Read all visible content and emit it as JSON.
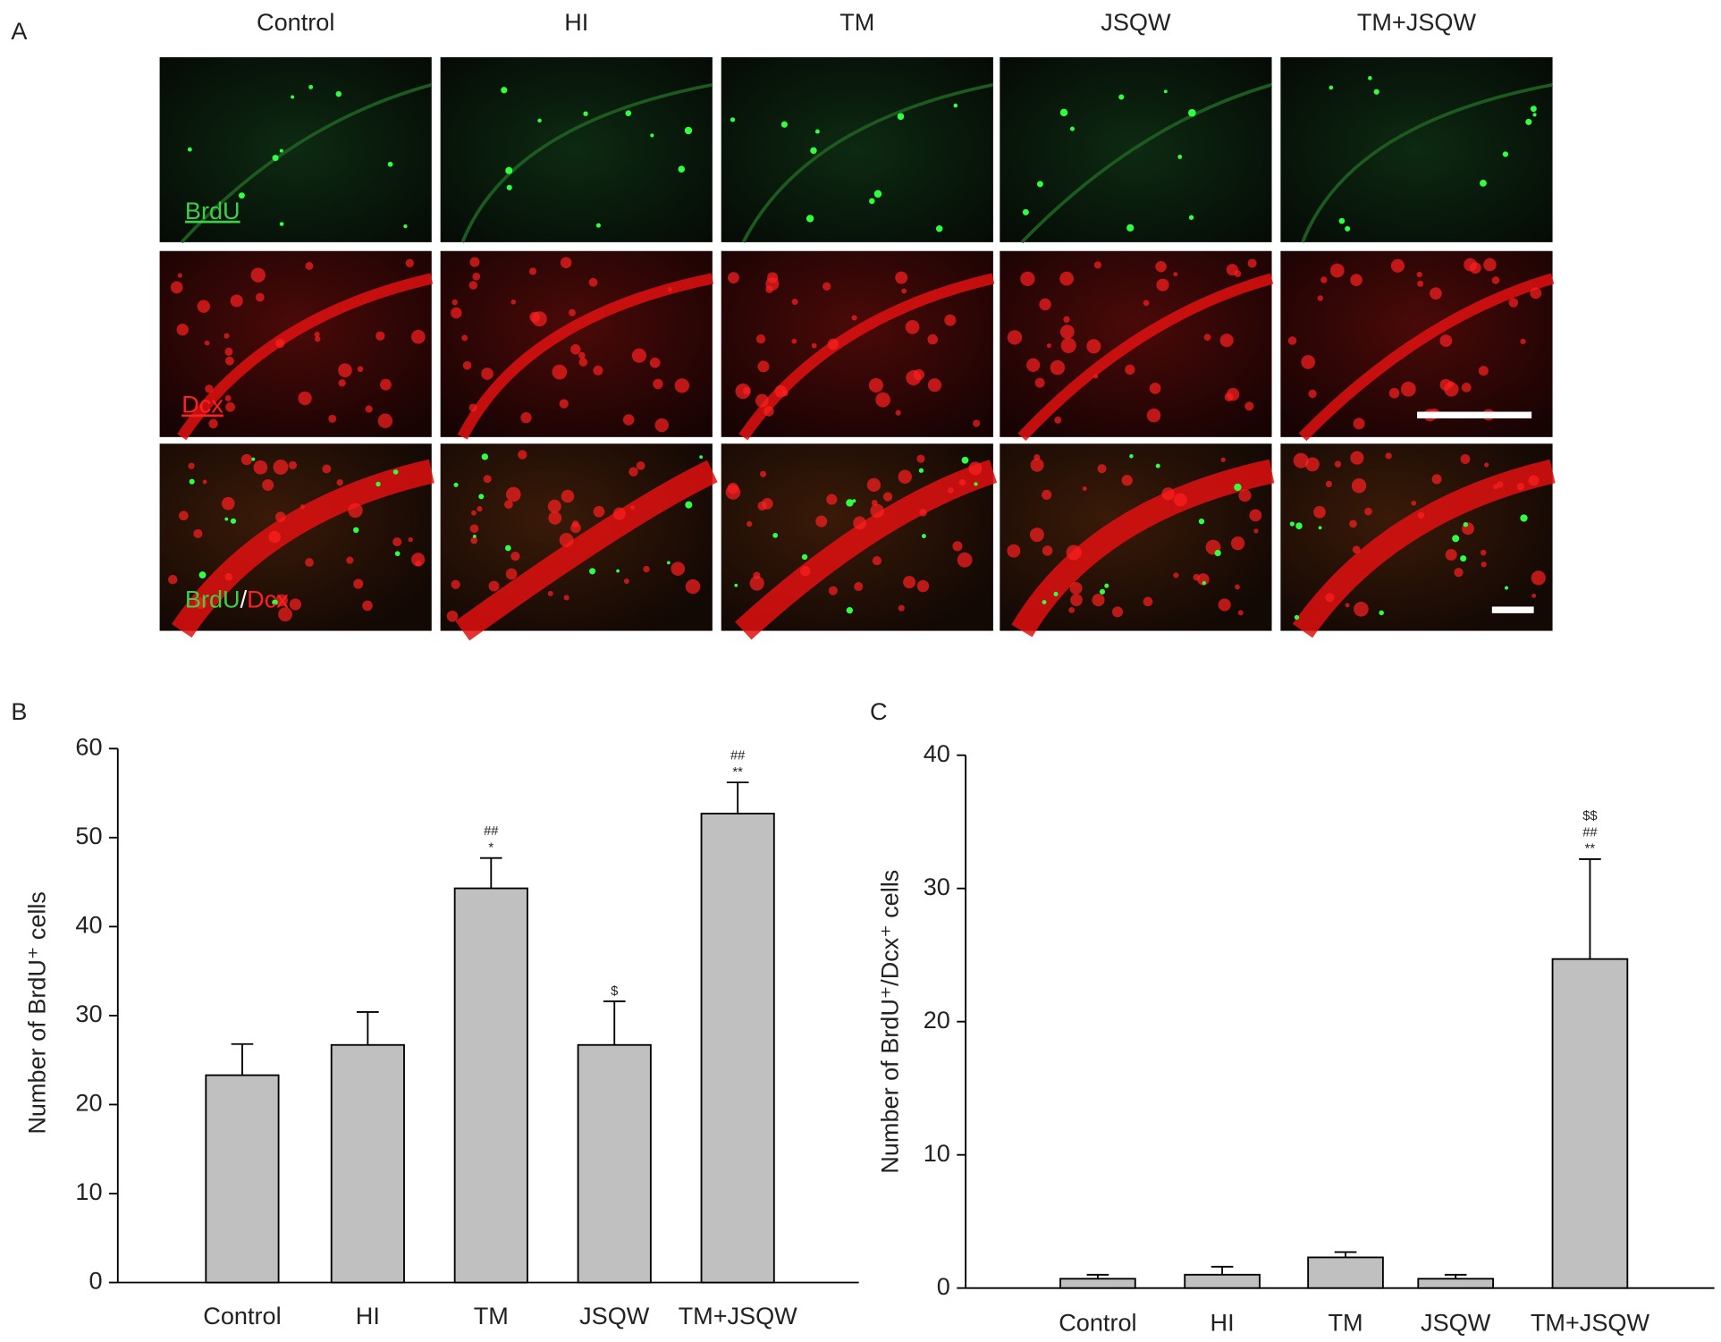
{
  "panel_a": {
    "label": "A",
    "columns": [
      "Control",
      "HI",
      "TM",
      "JSQW",
      "TM+JSQW"
    ],
    "row_labels": [
      "BrdU",
      "Dcx"
    ],
    "merged_label": [
      "BrdU",
      "/",
      "Dcx"
    ]
  },
  "chart_data": [
    {
      "type": "bar",
      "panel_label": "B",
      "y_label": "Number of BrdU⁺ cells",
      "categories": [
        "Control",
        "HI",
        "TM",
        "JSQW",
        "TM+JSQW"
      ],
      "values": [
        23.3,
        26.7,
        44.3,
        26.7,
        52.7
      ],
      "errors": [
        3.5,
        3.7,
        3.4,
        4.9,
        3.5
      ],
      "significance": [
        null,
        null,
        [
          "##",
          "*"
        ],
        [
          "$"
        ],
        [
          "##",
          "**"
        ]
      ],
      "color": "#c0c0c0",
      "ylim": [
        0,
        60
      ],
      "yticks": [
        0,
        10,
        20,
        30,
        40,
        50,
        60
      ]
    },
    {
      "type": "bar",
      "panel_label": "C",
      "y_label": "Number of BrdU⁺/Dcx⁺ cells",
      "categories": [
        "Control",
        "HI",
        "TM",
        "JSQW",
        "TM+JSQW"
      ],
      "values": [
        0.7,
        1.0,
        2.3,
        0.7,
        24.7
      ],
      "errors": [
        0.3,
        0.6,
        0.4,
        0.3,
        7.5
      ],
      "significance": [
        null,
        null,
        null,
        null,
        [
          "$$",
          "##",
          "**"
        ]
      ],
      "color": "#c0c0c0",
      "ylim": [
        0,
        40
      ],
      "yticks": [
        0,
        10,
        20,
        30,
        40
      ]
    }
  ]
}
